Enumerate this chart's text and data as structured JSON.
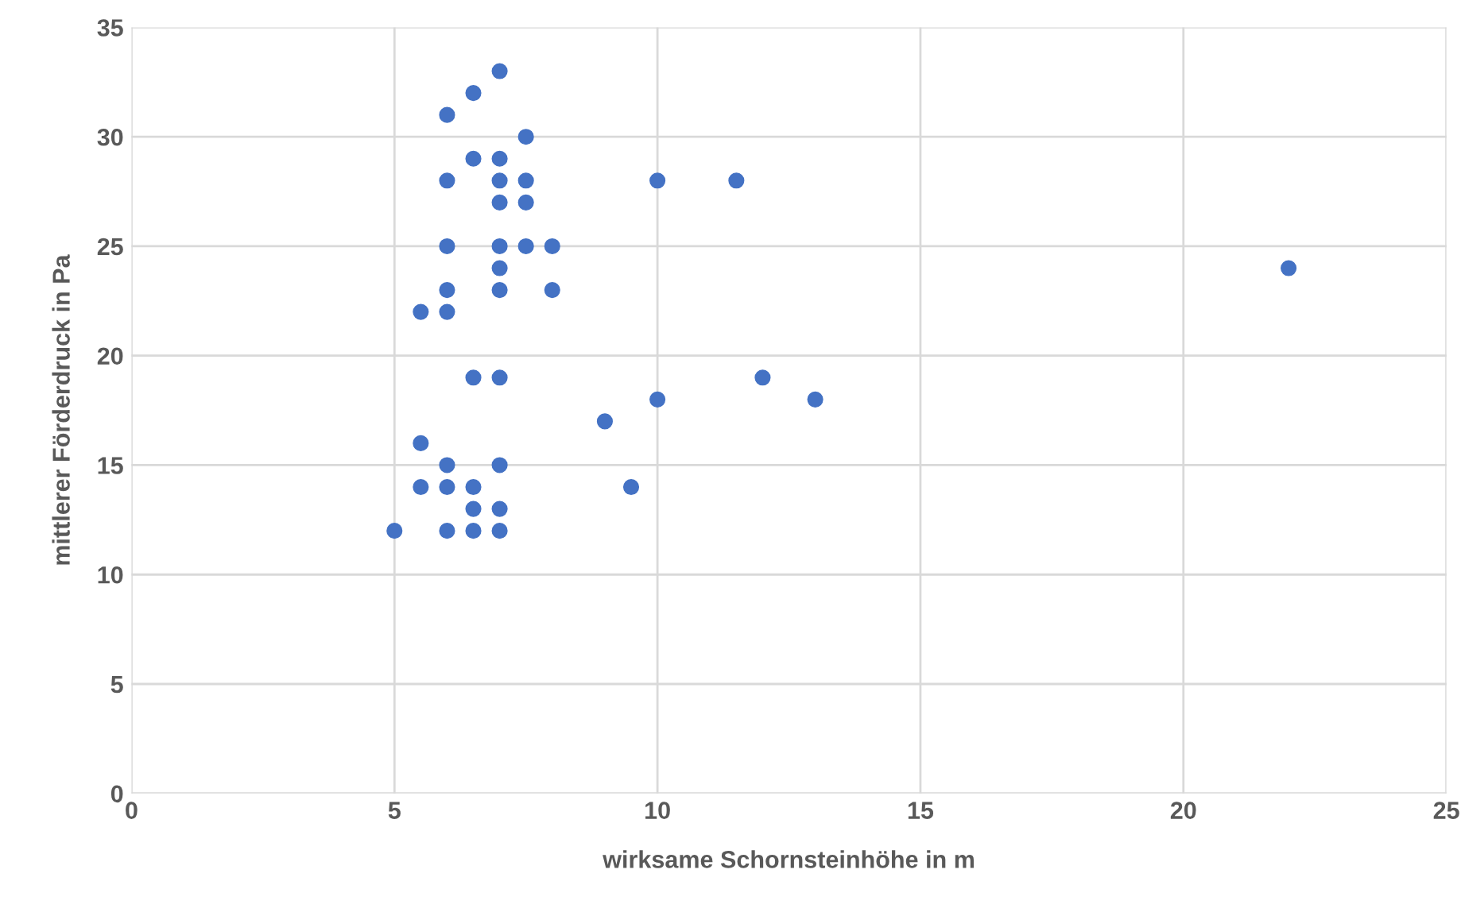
{
  "chart_data": {
    "type": "scatter",
    "xlabel": "wirksame Schornsteinhöhe in m",
    "ylabel": "mittlerer Förderdruck in Pa",
    "x": [
      5,
      5.5,
      5.5,
      5.5,
      6,
      6,
      6,
      6,
      6,
      6,
      6,
      6,
      6.5,
      6.5,
      6.5,
      6.5,
      6.5,
      6.5,
      7,
      7,
      7,
      7,
      7,
      7,
      7,
      7,
      7,
      7,
      7,
      7.5,
      7.5,
      7.5,
      7.5,
      8,
      8,
      9,
      9.5,
      10,
      10,
      11.5,
      12,
      13,
      22
    ],
    "values": [
      12,
      22,
      16,
      14,
      31,
      28,
      25,
      23,
      22,
      15,
      14,
      12,
      32,
      29,
      19,
      14,
      13,
      12,
      33,
      29,
      28,
      27,
      25,
      24,
      23,
      19,
      15,
      13,
      12,
      30,
      28,
      27,
      25,
      25,
      23,
      17,
      14,
      28,
      18,
      28,
      19,
      18,
      24
    ],
    "color": "#4472c4",
    "marker": "circle",
    "xlim": [
      0,
      25
    ],
    "xticks": [
      0,
      5,
      10,
      15,
      20,
      25
    ],
    "ylim": [
      0,
      35
    ],
    "yticks": [
      0,
      5,
      10,
      15,
      20,
      25,
      30,
      35
    ],
    "grid": true
  }
}
